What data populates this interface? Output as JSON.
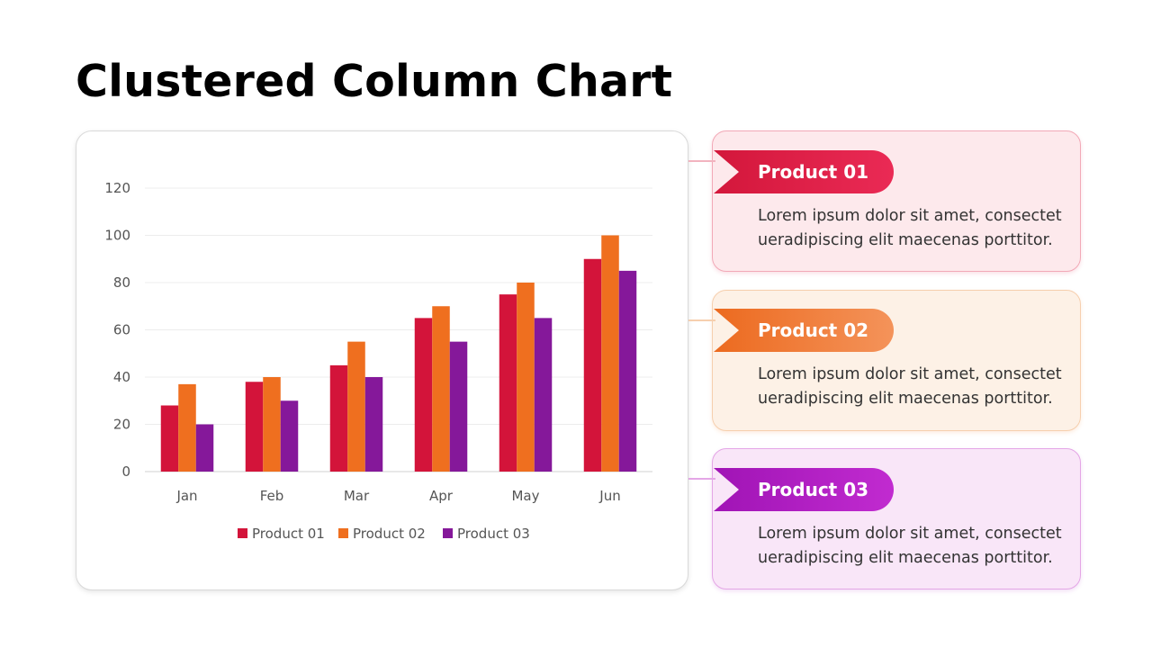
{
  "page": {
    "title": "Clustered Column Chart"
  },
  "chart_data": {
    "type": "bar",
    "title": "",
    "xlabel": "",
    "ylabel": "",
    "categories": [
      "Jan",
      "Feb",
      "Mar",
      "Apr",
      "May",
      "Jun"
    ],
    "series": [
      {
        "name": "Product 01",
        "color": "#d3143a",
        "values": [
          28,
          38,
          45,
          65,
          75,
          90
        ]
      },
      {
        "name": "Product 02",
        "color": "#ef6f1f",
        "values": [
          37,
          40,
          55,
          70,
          80,
          100
        ]
      },
      {
        "name": "Product 03",
        "color": "#85189a",
        "values": [
          20,
          30,
          40,
          55,
          65,
          85
        ]
      }
    ],
    "ylim": [
      0,
      120
    ],
    "yticks": [
      0,
      20,
      40,
      60,
      80,
      100,
      120
    ],
    "grid": true,
    "legend_position": "bottom"
  },
  "products": [
    {
      "label": "Product 01",
      "description": "Lorem ipsum dolor sit amet, consectet ueradipiscing elit maecenas porttitor.",
      "color": "#e0234b"
    },
    {
      "label": "Product 02",
      "description": "Lorem ipsum dolor sit amet, consectet ueradipiscing elit maecenas porttitor.",
      "color": "#f07e35"
    },
    {
      "label": "Product 03",
      "description": "Lorem ipsum dolor sit amet, consectet ueradipiscing elit maecenas porttitor.",
      "color": "#b01fc4"
    }
  ]
}
